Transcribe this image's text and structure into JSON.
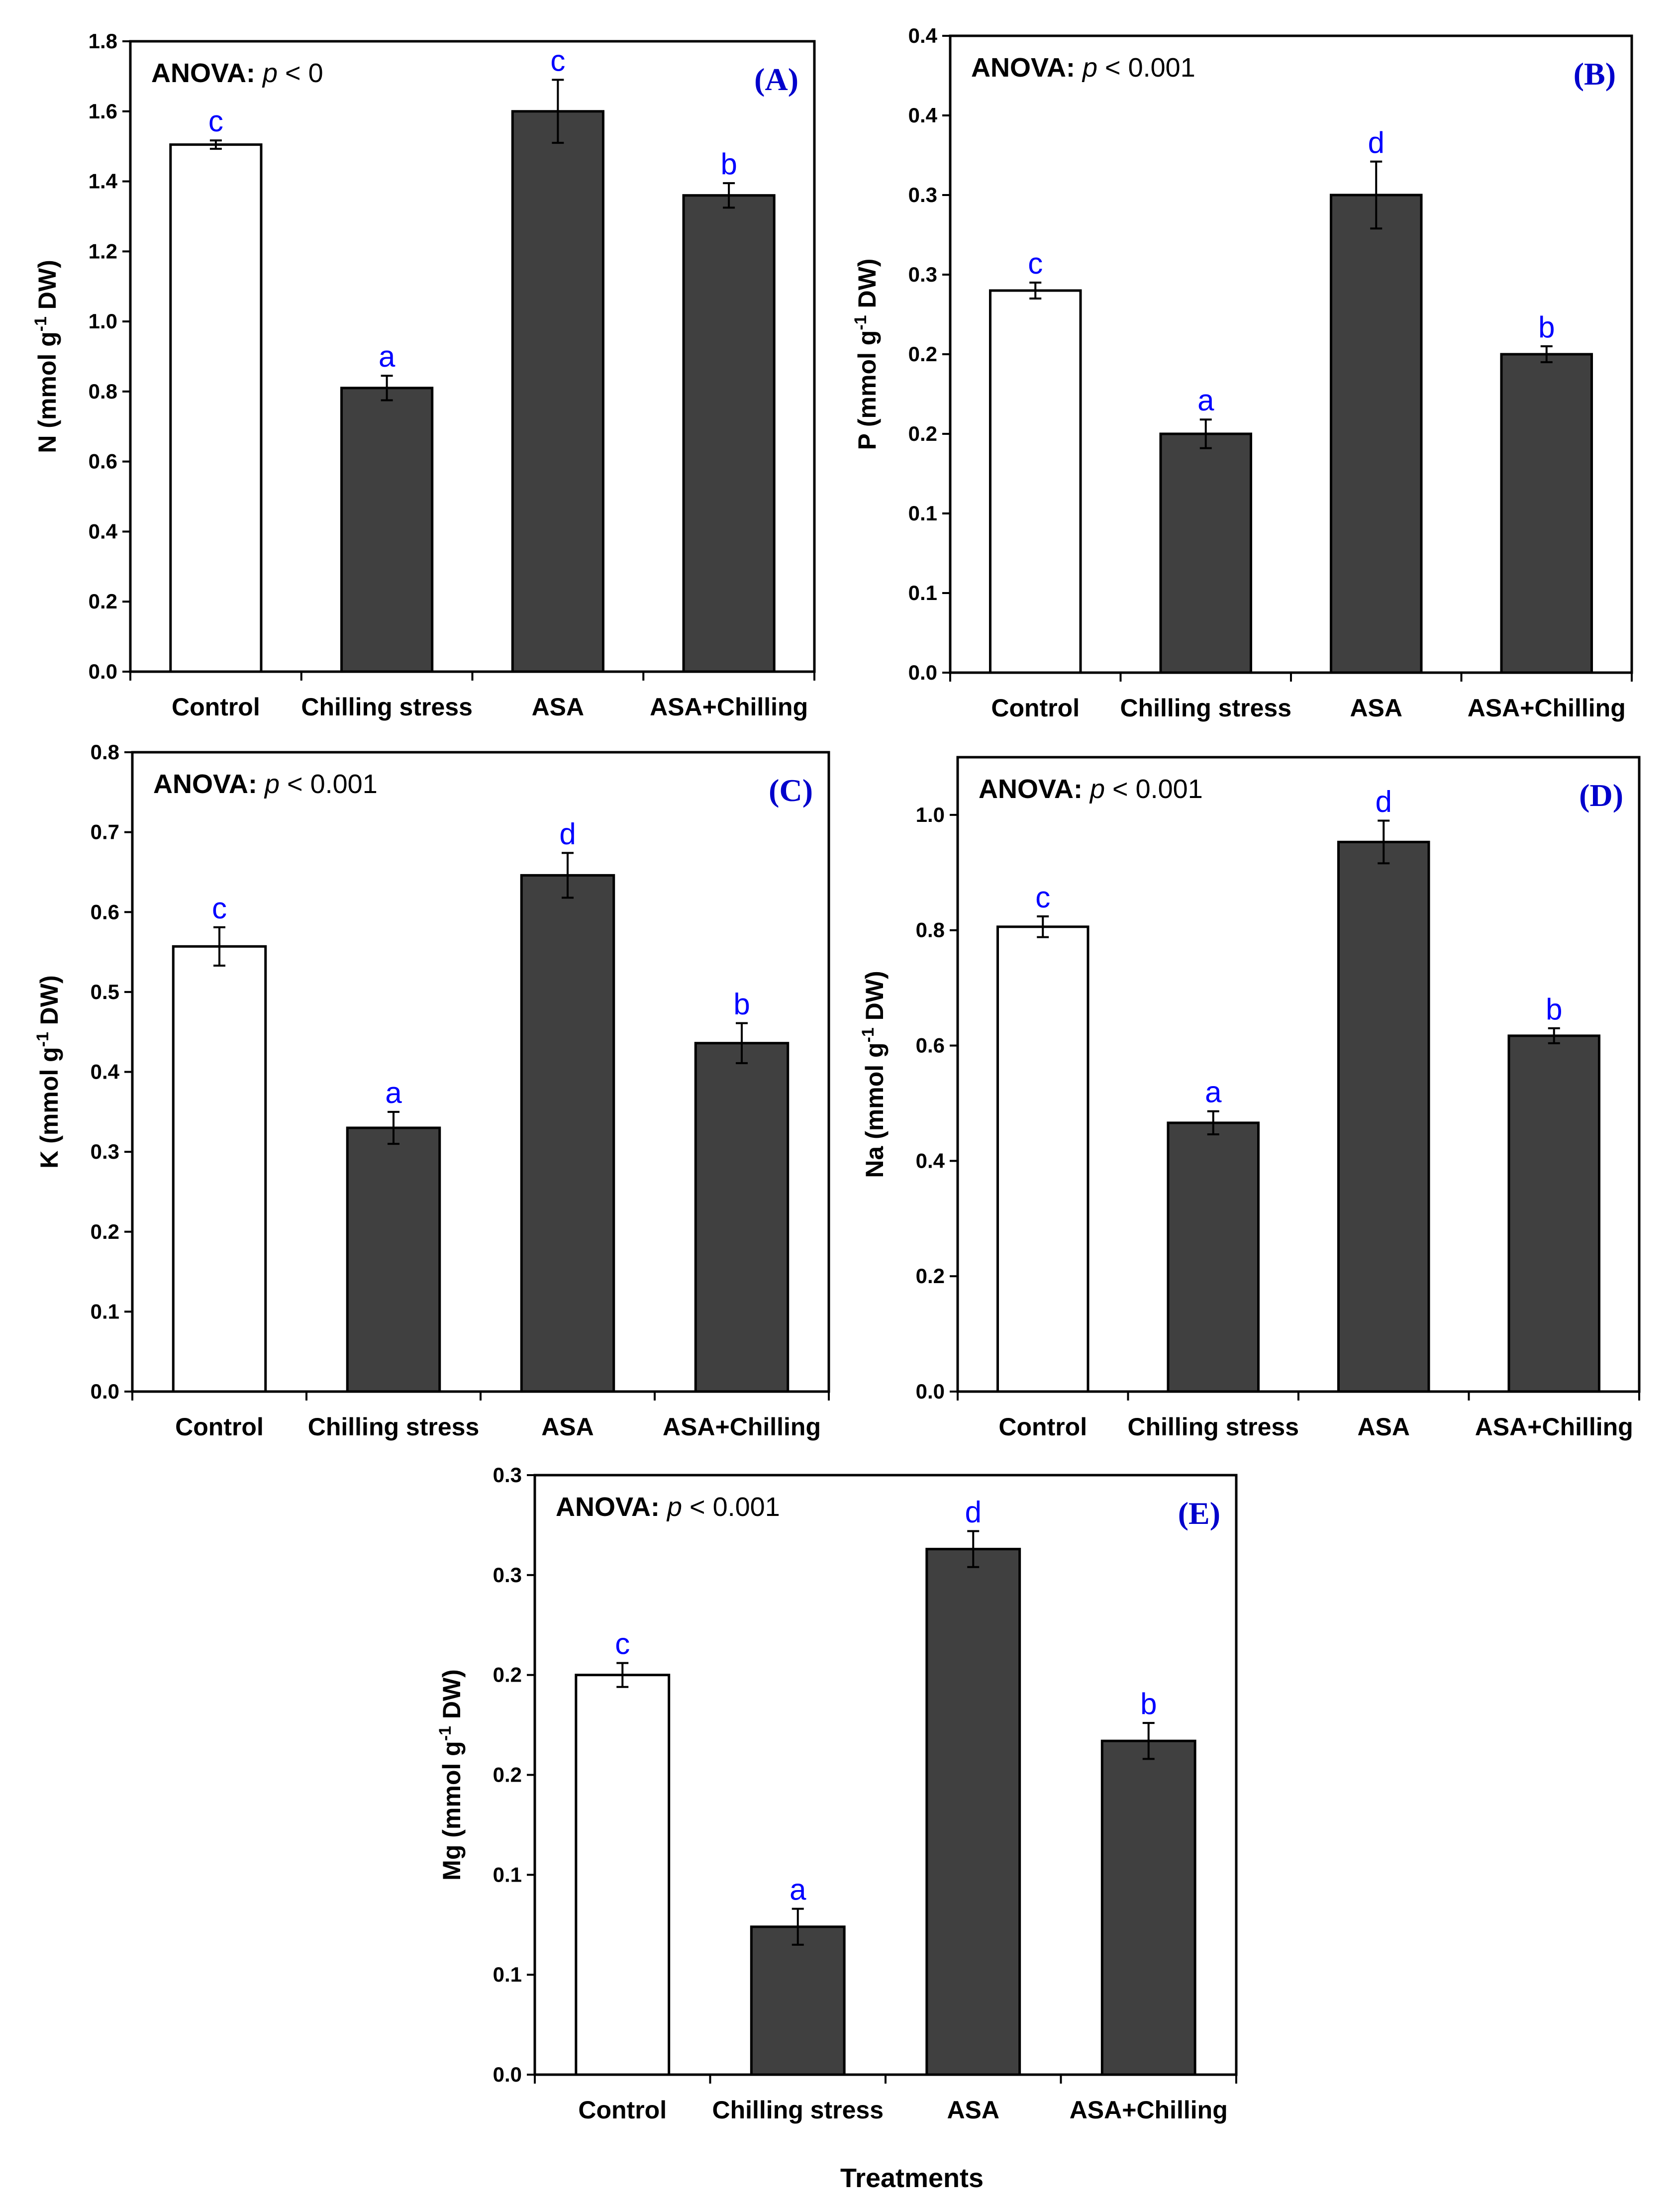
{
  "figure": {
    "xlabel": "Treatments",
    "colors": {
      "control_fill": "#ffffff",
      "treatment_fill": "#404040",
      "outline": "#000000",
      "letters": "#0000ff",
      "panel_label": "#0000cc"
    }
  },
  "chart_data": [
    {
      "id": "A",
      "type": "bar",
      "panel_label": "(A)",
      "anova_prefix": "ANOVA:",
      "anova_stat": "p",
      "anova_value": " < 0",
      "ylabel_main": "N (mmol g",
      "ylabel_sup": "-1",
      "ylabel_end": " DW)",
      "ylim": [
        0,
        1.8
      ],
      "ticks": [
        "0.0",
        "0.2",
        "0.4",
        "0.6",
        "0.8",
        "1.0",
        "1.2",
        "1.4",
        "1.6",
        "1.8"
      ],
      "categories": [
        "Control",
        "Chilling stress",
        "ASA",
        "ASA+Chilling"
      ],
      "values": [
        1.505,
        0.81,
        1.6,
        1.36
      ],
      "errors": [
        0.012,
        0.035,
        0.09,
        0.035
      ],
      "letters": [
        "c",
        "a",
        "c",
        "b"
      ]
    },
    {
      "id": "B",
      "type": "bar",
      "panel_label": "(B)",
      "anova_prefix": "ANOVA:",
      "anova_stat": "p",
      "anova_value": " < 0.001",
      "ylabel_main": "P (mmol g",
      "ylabel_sup": "-1",
      "ylabel_end": " DW)",
      "ylim": [
        0,
        0.4
      ],
      "ticks": [
        "0.0",
        "0.1",
        "0.1",
        "0.2",
        "0.2",
        "0.3",
        "0.3",
        "0.4",
        "0.4"
      ],
      "categories": [
        "Control",
        "Chilling stress",
        "ASA",
        "ASA+Chilling"
      ],
      "values": [
        0.24,
        0.15,
        0.3,
        0.2
      ],
      "errors": [
        0.005,
        0.009,
        0.021,
        0.005
      ],
      "letters": [
        "c",
        "a",
        "d",
        "b"
      ]
    },
    {
      "id": "C",
      "type": "bar",
      "panel_label": "(C)",
      "anova_prefix": "ANOVA:",
      "anova_stat": "p",
      "anova_value": " < 0.001",
      "ylabel_main": "K (mmol g",
      "ylabel_sup": "-1",
      "ylabel_end": " DW)",
      "ylim": [
        0,
        0.8
      ],
      "ticks": [
        "0.0",
        "0.1",
        "0.2",
        "0.3",
        "0.4",
        "0.5",
        "0.6",
        "0.7",
        "0.8"
      ],
      "categories": [
        "Control",
        "Chilling stress",
        "ASA",
        "ASA+Chilling"
      ],
      "values": [
        0.557,
        0.33,
        0.646,
        0.436
      ],
      "errors": [
        0.024,
        0.02,
        0.028,
        0.025
      ],
      "letters": [
        "c",
        "a",
        "d",
        "b"
      ]
    },
    {
      "id": "D",
      "type": "bar",
      "panel_label": "(D)",
      "anova_prefix": "ANOVA:",
      "anova_stat": "p",
      "anova_value": " < 0.001",
      "ylabel_main": "Na (mmol g",
      "ylabel_sup": "-1",
      "ylabel_end": " DW)",
      "ylim": [
        0,
        1.1
      ],
      "ticks": [
        "0.0",
        "0.2",
        "0.4",
        "0.6",
        "0.8",
        "1.0"
      ],
      "tick_values": [
        0,
        0.2,
        0.4,
        0.6,
        0.8,
        1.0
      ],
      "categories": [
        "Control",
        "Chilling stress",
        "ASA",
        "ASA+Chilling"
      ],
      "values": [
        0.806,
        0.466,
        0.953,
        0.617
      ],
      "errors": [
        0.018,
        0.02,
        0.037,
        0.013
      ],
      "letters": [
        "c",
        "a",
        "d",
        "b"
      ]
    },
    {
      "id": "E",
      "type": "bar",
      "panel_label": "(E)",
      "anova_prefix": "ANOVA:",
      "anova_stat": "p",
      "anova_value": " < 0.001",
      "ylabel_main": "Mg (mmol g",
      "ylabel_sup": "-1",
      "ylabel_end": " DW)",
      "ylim": [
        0,
        0.3
      ],
      "ticks": [
        "0.0",
        "0.1",
        "0.1",
        "0.2",
        "0.2",
        "0.3",
        "0.3"
      ],
      "categories": [
        "Control",
        "Chilling stress",
        "ASA",
        "ASA+Chilling"
      ],
      "values": [
        0.2,
        0.074,
        0.263,
        0.167
      ],
      "errors": [
        0.006,
        0.009,
        0.009,
        0.009
      ],
      "letters": [
        "c",
        "a",
        "d",
        "b"
      ]
    }
  ]
}
